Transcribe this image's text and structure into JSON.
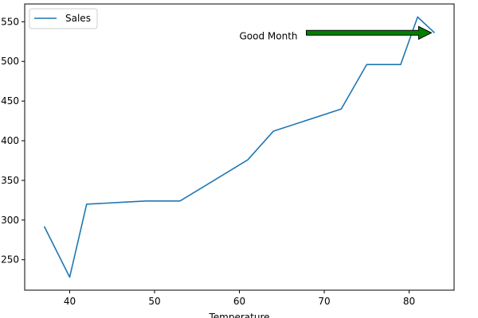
{
  "chart_data": {
    "type": "line",
    "title": "",
    "xlabel": "Temperature",
    "ylabel": "",
    "xlim": [
      34.7,
      85.3
    ],
    "ylim": [
      211.6,
      572.4
    ],
    "xticks": [
      40,
      50,
      60,
      70,
      80
    ],
    "yticks": [
      250,
      300,
      350,
      400,
      450,
      500,
      550
    ],
    "grid": false,
    "legend_position": "upper-left",
    "series": [
      {
        "name": "Sales",
        "color": "#1f77b4",
        "x": [
          37,
          40,
          42,
          49,
          53,
          61,
          64,
          72,
          75,
          79,
          81,
          83
        ],
        "y": [
          292,
          228,
          320,
          324,
          324,
          376,
          412,
          440,
          496,
          496,
          556,
          536
        ]
      }
    ],
    "annotations": [
      {
        "text": "Good Month",
        "point": [
          83,
          536
        ],
        "text_anchor": [
          60,
          532
        ],
        "arrow": "filled",
        "arrow_color": "#008000",
        "arrow_edge_color": "#000000"
      }
    ]
  }
}
